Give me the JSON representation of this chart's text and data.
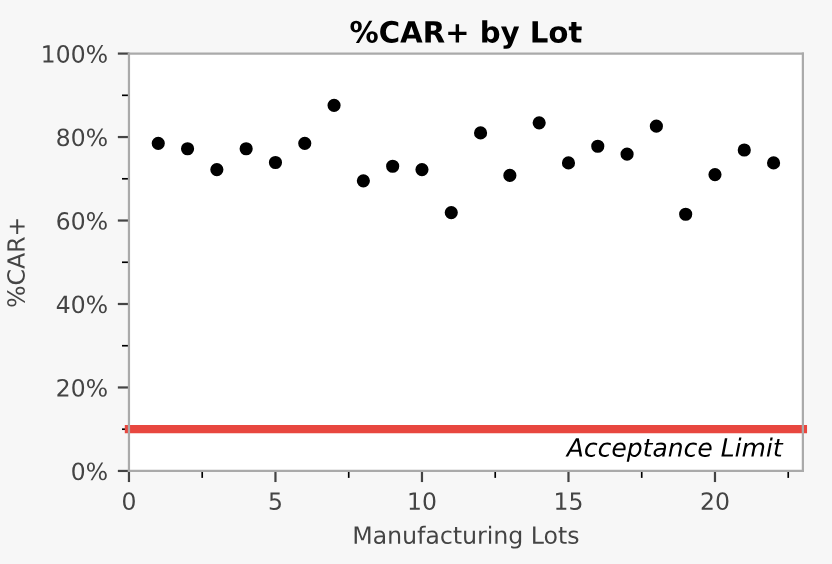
{
  "chart_data": {
    "type": "scatter",
    "title": "%CAR+ by Lot",
    "xlabel": "Manufacturing Lots",
    "ylabel": "%CAR+",
    "x": [
      1,
      2,
      3,
      4,
      5,
      6,
      7,
      8,
      9,
      10,
      11,
      12,
      13,
      14,
      15,
      16,
      17,
      18,
      19,
      20,
      21,
      22
    ],
    "series": [
      {
        "color": "#000000",
        "values": [
          78.5,
          77.2,
          72.2,
          77.2,
          73.9,
          78.5,
          87.6,
          69.5,
          73.0,
          72.2,
          61.9,
          81.0,
          70.8,
          83.4,
          73.8,
          77.8,
          75.9,
          82.6,
          61.5,
          71.0,
          76.9,
          73.8
        ]
      }
    ],
    "xlim": [
      0,
      23
    ],
    "xticks": [
      0,
      5,
      10,
      15,
      20
    ],
    "ylim": [
      0,
      100
    ],
    "yticks": [
      {
        "value": 0,
        "label": "0%"
      },
      {
        "value": 20,
        "label": "20%"
      },
      {
        "value": 40,
        "label": "40%"
      },
      {
        "value": 60,
        "label": "60%"
      },
      {
        "value": 80,
        "label": "80%"
      },
      {
        "value": 100,
        "label": "100%"
      }
    ],
    "ref_lines": [
      {
        "axis": "y",
        "value": 10,
        "label": "Acceptance Limit",
        "color": "#e8473f"
      }
    ],
    "marker": "circle",
    "grid": false,
    "legend": false
  }
}
